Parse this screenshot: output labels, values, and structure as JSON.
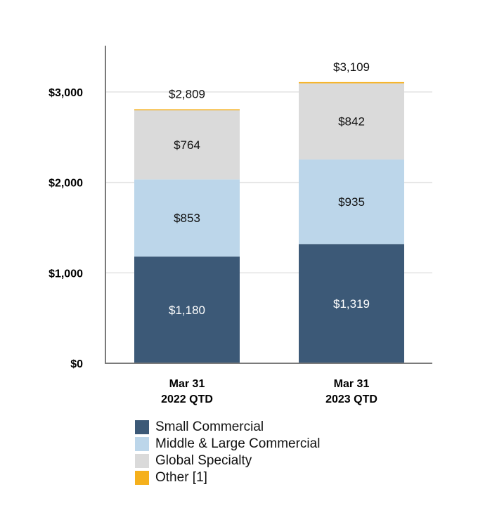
{
  "chart_data": {
    "type": "bar",
    "stacked": true,
    "categories": [
      [
        "Mar 31",
        "2022 QTD"
      ],
      [
        "Mar 31",
        "2023 QTD"
      ]
    ],
    "series": [
      {
        "name": "Small Commercial",
        "color": "#3c5977",
        "label_color": "#ffffff",
        "values": [
          1180,
          1319
        ],
        "labels": [
          "$1,180",
          "$1,319"
        ]
      },
      {
        "name": "Middle & Large Commercial",
        "color": "#bcd6ea",
        "label_color": "#111111",
        "values": [
          853,
          935
        ],
        "labels": [
          "$853",
          "$935"
        ]
      },
      {
        "name": "Global Specialty",
        "color": "#dadada",
        "label_color": "#111111",
        "values": [
          764,
          842
        ],
        "labels": [
          "$764",
          "$842"
        ]
      },
      {
        "name": "Other [1]",
        "color": "#f5b01c",
        "label_color": "#111111",
        "values": [
          12,
          13
        ],
        "labels": [
          "",
          ""
        ]
      }
    ],
    "totals": [
      "$2,809",
      "$3,109"
    ],
    "yticks": [
      0,
      1000,
      2000,
      3000
    ],
    "ytick_labels": [
      "$0",
      "$1,000",
      "$2,000",
      "$3,000"
    ],
    "ylim": [
      0,
      3500
    ],
    "grid": true,
    "legend_position": "bottom",
    "title": "",
    "xlabel": "",
    "ylabel": ""
  }
}
